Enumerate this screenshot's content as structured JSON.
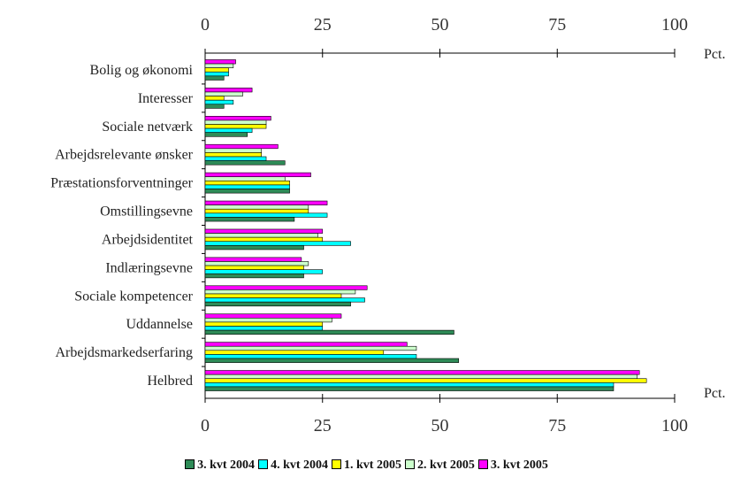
{
  "chart_data": {
    "type": "bar",
    "orientation": "horizontal",
    "categories": [
      "Bolig og økonomi",
      "Interesser",
      "Sociale netværk",
      "Arbejdsrelevante ønsker",
      "Præstationsforventninger",
      "Omstillingsevne",
      "Arbejdsidentitet",
      "Indlæringsevne",
      "Sociale kompetencer",
      "Uddannelse",
      "Arbejdsmarkedserfaring",
      "Helbred"
    ],
    "series": [
      {
        "name": "3. kvt 2004",
        "color": "#2e8b57",
        "values": [
          4,
          4,
          9,
          17,
          18,
          19,
          21,
          21,
          31,
          53,
          54,
          87
        ]
      },
      {
        "name": "4. kvt 2004",
        "color": "#00ffff",
        "values": [
          5,
          6,
          10,
          13,
          18,
          26,
          31,
          25,
          34,
          25,
          45,
          87
        ]
      },
      {
        "name": "1. kvt 2005",
        "color": "#ffff00",
        "values": [
          5,
          4,
          13,
          12,
          18,
          22,
          25,
          21,
          29,
          25,
          38,
          94
        ]
      },
      {
        "name": "2. kvt 2005",
        "color": "#ccffcc",
        "values": [
          6,
          8,
          13,
          12,
          17,
          22,
          24,
          22,
          32,
          27,
          45,
          92
        ]
      },
      {
        "name": "3. kvt 2005",
        "color": "#ff00ff",
        "values": [
          6.5,
          10,
          14,
          15.5,
          22.5,
          26,
          25,
          20.5,
          34.5,
          29,
          43,
          92.5
        ]
      }
    ],
    "xlim": [
      0,
      100
    ],
    "xticks": [
      0,
      25,
      50,
      75,
      100
    ],
    "xunit": "Pct.",
    "xaxis_top": true,
    "xaxis_bottom": true,
    "grid": false,
    "legend_position": "bottom"
  }
}
